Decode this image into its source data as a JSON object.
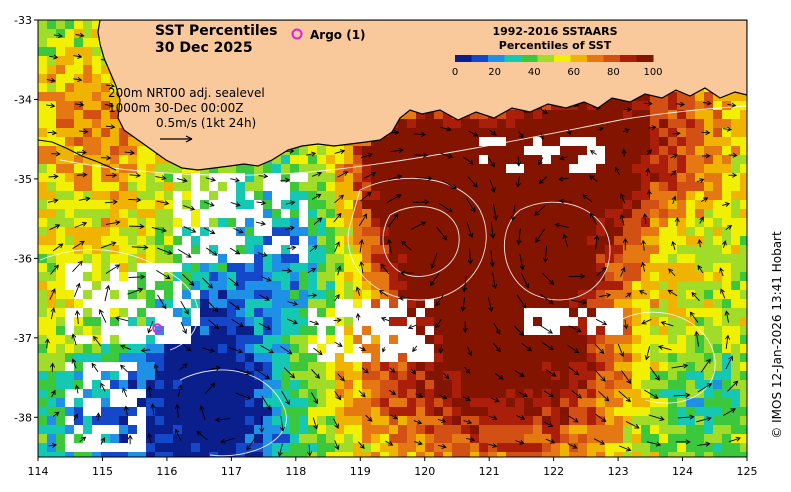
{
  "title": {
    "line1": "SST Percentiles",
    "line2": "30 Dec 2025"
  },
  "argo": {
    "label": "Argo (1)",
    "marker_color": "#e020e0",
    "float_position": {
      "lon": 115.85,
      "lat": -36.88
    }
  },
  "legend": {
    "title_line1": "1992-2016 SSTAARS",
    "title_line2": "Percentiles of SST",
    "ticks": [
      "0",
      "20",
      "40",
      "60",
      "80",
      "100"
    ],
    "colors": [
      "#0a1e8c",
      "#1448c8",
      "#1e90e6",
      "#14c8b4",
      "#3cc83c",
      "#a0dc28",
      "#f0f000",
      "#f0b400",
      "#e67814",
      "#d25014",
      "#aa1e0a",
      "#821400"
    ]
  },
  "info": {
    "line1": "200m  NRT00 adj. sealevel",
    "line2": "1000m 30-Dec 00:00Z",
    "line3": "0.5m/s (1kt 24h)"
  },
  "credit": "© IMOS 12-Jan-2026 13:41 Hobart",
  "axes": {
    "x_ticks": [
      "114",
      "115",
      "116",
      "117",
      "118",
      "119",
      "120",
      "121",
      "122",
      "123",
      "124",
      "125"
    ],
    "y_ticks": [
      "-33",
      "-34",
      "-35",
      "-36",
      "-37",
      "-38"
    ],
    "lon_range": [
      114,
      125
    ],
    "lat_range": [
      -38.5,
      -33
    ]
  },
  "colors": {
    "land": "#f9c89b",
    "coast": "#000000",
    "nodata": "#ffffff",
    "contour": "#ffffff",
    "vector": "#000000"
  }
}
